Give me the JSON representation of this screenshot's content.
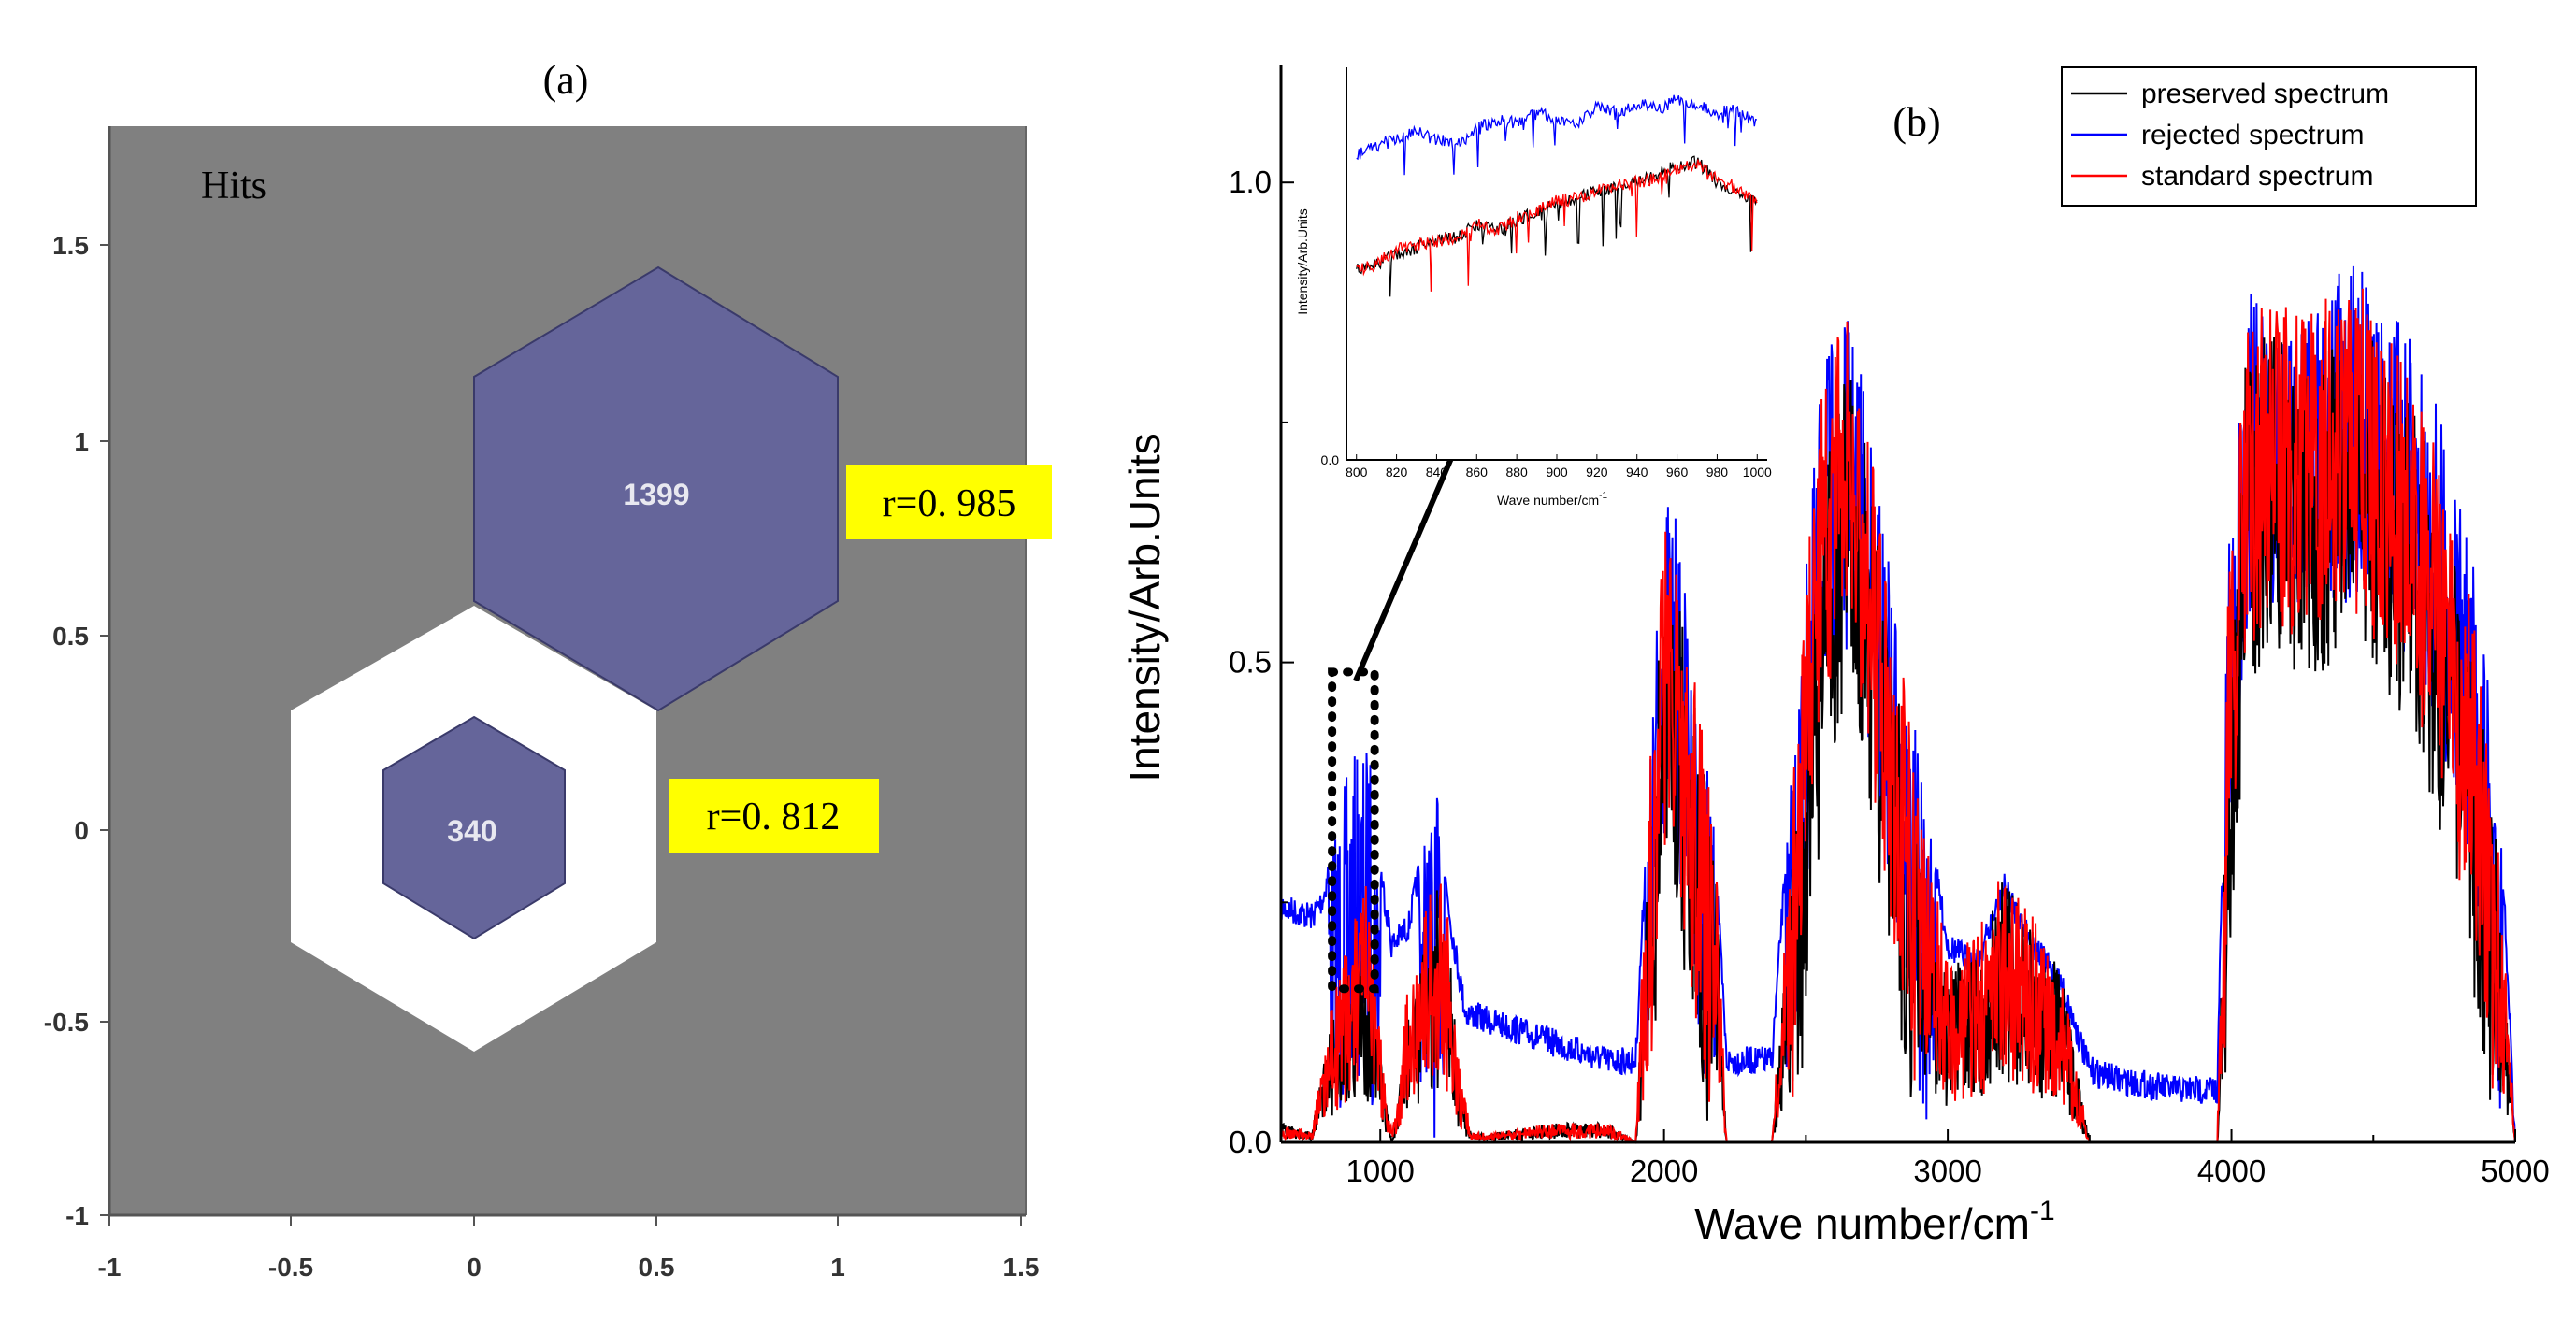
{
  "chart_data": [
    {
      "type": "hexagonal-map",
      "panel_label": "(a)",
      "title": "Hits",
      "xlim": [
        -1,
        1.5
      ],
      "ylim": [
        -1,
        1.75
      ],
      "x_ticks": [
        "-1",
        "-0.5",
        "0",
        "0.5",
        "1",
        "1.5"
      ],
      "y_ticks": [
        "1.5",
        "1",
        "0.5",
        "0",
        "-0.5",
        "-1"
      ],
      "background_color": "#808080",
      "neuron_color": "#65659a",
      "cells": [
        {
          "x": 0.5,
          "y": 0.866,
          "hits": 1399,
          "r_label": "r=0. 985"
        },
        {
          "x": 0.0,
          "y": 0.0,
          "hits": 340,
          "r_label": "r=0. 812"
        }
      ],
      "highlight_color": "#ffff00"
    },
    {
      "type": "line",
      "panel_label": "(b)",
      "xlabel": "Wave number/cm",
      "xlabel_sup": "-1",
      "ylabel": "Intensity/Arb.Units",
      "xlim": [
        650,
        5000
      ],
      "ylim": [
        0,
        1.12
      ],
      "x_ticks": [
        "1000",
        "2000",
        "3000",
        "4000",
        "5000"
      ],
      "y_ticks": [
        "0.0",
        "0.5",
        "1.0"
      ],
      "series": [
        {
          "name": "preserved spectrum",
          "color": "#000000",
          "x": [
            650,
            760,
            800,
            870,
            950,
            1000,
            1040,
            1060,
            1100,
            1150,
            1200,
            1240,
            1280,
            1320,
            1400,
            1600,
            1800,
            1900,
            1950,
            1990,
            2030,
            2080,
            2130,
            2180,
            2220,
            2380,
            2480,
            2560,
            2650,
            2700,
            2800,
            2900,
            3000,
            3100,
            3200,
            3300,
            3400,
            3500,
            3600,
            3800,
            3950,
            3990,
            4050,
            4150,
            4250,
            4350,
            4450,
            4550,
            4650,
            4750,
            4820,
            4880,
            4940,
            4980,
            5000
          ],
          "y": [
            0.02,
            0.01,
            0.09,
            0.17,
            0.22,
            0.1,
            0.0,
            0.03,
            0.15,
            0.2,
            0.28,
            0.22,
            0.06,
            0.01,
            0.01,
            0.02,
            0.02,
            0.0,
            0.33,
            0.58,
            0.62,
            0.5,
            0.42,
            0.3,
            0.0,
            0.0,
            0.4,
            0.7,
            0.82,
            0.75,
            0.52,
            0.3,
            0.18,
            0.2,
            0.28,
            0.22,
            0.18,
            0.0,
            0.0,
            0.0,
            0.0,
            0.48,
            0.82,
            0.86,
            0.82,
            0.84,
            0.86,
            0.82,
            0.76,
            0.66,
            0.55,
            0.45,
            0.3,
            0.1,
            0.0
          ]
        },
        {
          "name": "rejected spectrum",
          "color": "#0000ff",
          "x": [
            650,
            760,
            800,
            850,
            900,
            960,
            1000,
            1040,
            1100,
            1150,
            1200,
            1250,
            1300,
            1400,
            1600,
            1800,
            1900,
            1950,
            1990,
            2030,
            2080,
            2130,
            2180,
            2220,
            2380,
            2480,
            2560,
            2650,
            2700,
            2800,
            2900,
            3000,
            3100,
            3200,
            3300,
            3400,
            3500,
            3600,
            3800,
            3950,
            3990,
            4050,
            4150,
            4250,
            4350,
            4450,
            4550,
            4650,
            4750,
            4820,
            4880,
            4940,
            4980,
            5000
          ],
          "y": [
            0.26,
            0.25,
            0.27,
            0.35,
            0.4,
            0.42,
            0.3,
            0.22,
            0.24,
            0.32,
            0.36,
            0.24,
            0.15,
            0.14,
            0.12,
            0.1,
            0.1,
            0.4,
            0.66,
            0.68,
            0.56,
            0.45,
            0.32,
            0.1,
            0.1,
            0.52,
            0.82,
            0.86,
            0.8,
            0.6,
            0.4,
            0.22,
            0.2,
            0.28,
            0.22,
            0.18,
            0.09,
            0.08,
            0.07,
            0.07,
            0.62,
            0.88,
            0.9,
            0.88,
            0.9,
            0.92,
            0.87,
            0.83,
            0.75,
            0.65,
            0.56,
            0.4,
            0.15,
            0.0
          ]
        },
        {
          "name": "standard spectrum",
          "color": "#ff0000",
          "x": [
            650,
            760,
            800,
            870,
            950,
            1000,
            1040,
            1060,
            1100,
            1150,
            1200,
            1240,
            1280,
            1320,
            1400,
            1600,
            1800,
            1900,
            1950,
            1990,
            2030,
            2080,
            2130,
            2180,
            2220,
            2380,
            2480,
            2560,
            2650,
            2700,
            2800,
            2900,
            3000,
            3100,
            3200,
            3300,
            3400,
            3500,
            3600,
            3800,
            3950,
            3990,
            4050,
            4150,
            4250,
            4350,
            4450,
            4550,
            4650,
            4750,
            4820,
            4880,
            4940,
            4980,
            5000
          ],
          "y": [
            0.02,
            0.01,
            0.1,
            0.2,
            0.27,
            0.12,
            0.01,
            0.04,
            0.18,
            0.24,
            0.3,
            0.24,
            0.08,
            0.01,
            0.01,
            0.02,
            0.02,
            0.0,
            0.4,
            0.64,
            0.66,
            0.54,
            0.44,
            0.32,
            0.0,
            0.0,
            0.5,
            0.82,
            0.86,
            0.8,
            0.58,
            0.36,
            0.2,
            0.22,
            0.3,
            0.24,
            0.18,
            0.0,
            0.0,
            0.0,
            0.0,
            0.6,
            0.86,
            0.88,
            0.86,
            0.89,
            0.9,
            0.85,
            0.8,
            0.7,
            0.6,
            0.5,
            0.32,
            0.12,
            0.0
          ]
        }
      ],
      "legend": {
        "placement": "top-right",
        "entries": [
          "preserved spectrum",
          "rejected spectrum",
          "standard spectrum"
        ]
      },
      "zoom_box": {
        "x_range": [
          830,
          980
        ],
        "y_range": [
          0.16,
          0.49
        ]
      },
      "inset": {
        "xlabel": "Wave number/cm",
        "xlabel_sup": "-1",
        "ylabel": "Intensity/Arb.Units",
        "xlim": [
          795,
          1005
        ],
        "ylim": [
          0,
          1.2
        ],
        "x_ticks": [
          "800",
          "820",
          "840",
          "860",
          "880",
          "900",
          "920",
          "940",
          "960",
          "980",
          "1000"
        ],
        "y_tick_zero": "0.0",
        "blue": {
          "x": [
            800,
            810,
            820,
            830,
            840,
            850,
            860,
            870,
            880,
            890,
            900,
            910,
            920,
            930,
            940,
            950,
            960,
            970,
            980,
            990,
            1000
          ],
          "y": [
            0.95,
            0.98,
            1.0,
            1.02,
            1.0,
            0.98,
            1.03,
            1.06,
            1.05,
            1.08,
            1.06,
            1.04,
            1.1,
            1.08,
            1.11,
            1.09,
            1.12,
            1.1,
            1.08,
            1.09,
            1.05
          ]
        },
        "red": {
          "x": [
            800,
            810,
            820,
            830,
            840,
            850,
            860,
            870,
            880,
            890,
            900,
            910,
            920,
            930,
            940,
            950,
            960,
            970,
            980,
            990,
            1000
          ],
          "y": [
            0.6,
            0.62,
            0.66,
            0.68,
            0.69,
            0.7,
            0.75,
            0.72,
            0.76,
            0.78,
            0.81,
            0.82,
            0.84,
            0.86,
            0.87,
            0.88,
            0.91,
            0.92,
            0.88,
            0.85,
            0.8
          ]
        },
        "black": {
          "x": [
            800,
            810,
            820,
            830,
            840,
            850,
            860,
            870,
            880,
            890,
            900,
            910,
            920,
            930,
            940,
            950,
            960,
            970,
            980,
            990,
            1000
          ],
          "y": [
            0.6,
            0.62,
            0.65,
            0.67,
            0.69,
            0.7,
            0.74,
            0.72,
            0.75,
            0.78,
            0.8,
            0.82,
            0.84,
            0.85,
            0.87,
            0.89,
            0.92,
            0.93,
            0.87,
            0.84,
            0.8
          ]
        }
      }
    }
  ]
}
